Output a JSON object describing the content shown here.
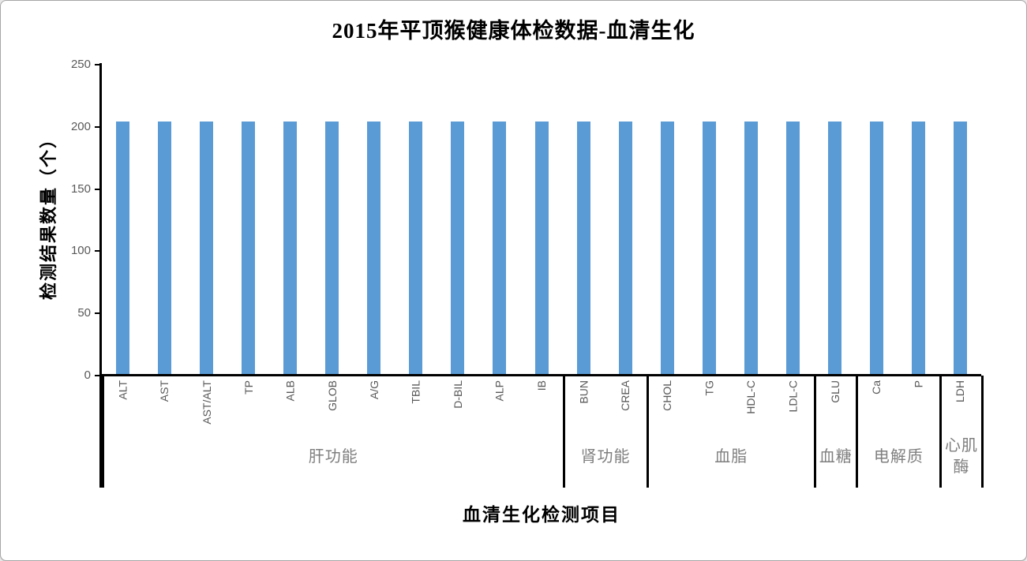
{
  "window": {
    "background": "#ffffff",
    "border_color": "#a6a6a6"
  },
  "chart_data": {
    "type": "bar",
    "title": "2015年平顶猴健康体检数据-血清生化",
    "xlabel": "血清生化检测项目",
    "ylabel": "检测结果数量（个）",
    "ylim": [
      0,
      250
    ],
    "yticks": [
      0,
      50,
      100,
      150,
      200,
      250
    ],
    "grid": false,
    "legend": "none",
    "bar_color": "#5B9BD5",
    "axis_color": "#000000",
    "tick_label_color": "#595959",
    "group_label_color": "#7f7f7f",
    "categories": [
      "ALT",
      "AST",
      "AST/ALT",
      "TP",
      "ALB",
      "GLOB",
      "A/G",
      "TBIL",
      "D-BIL",
      "ALP",
      "IB",
      "BUN",
      "CREA",
      "CHOL",
      "TG",
      "HDL-C",
      "LDL-C",
      "GLU",
      "Ca",
      "P",
      "LDH"
    ],
    "values": [
      204,
      204,
      204,
      204,
      204,
      204,
      204,
      204,
      204,
      204,
      204,
      204,
      204,
      204,
      204,
      204,
      204,
      204,
      204,
      204,
      204
    ],
    "groups": [
      {
        "label": "肝功能",
        "span": 11
      },
      {
        "label": "肾功能",
        "span": 2
      },
      {
        "label": "血脂",
        "span": 4
      },
      {
        "label": "血糖",
        "span": 1
      },
      {
        "label": "电解质",
        "span": 2
      },
      {
        "label": "心肌酶",
        "span": 1
      }
    ]
  }
}
